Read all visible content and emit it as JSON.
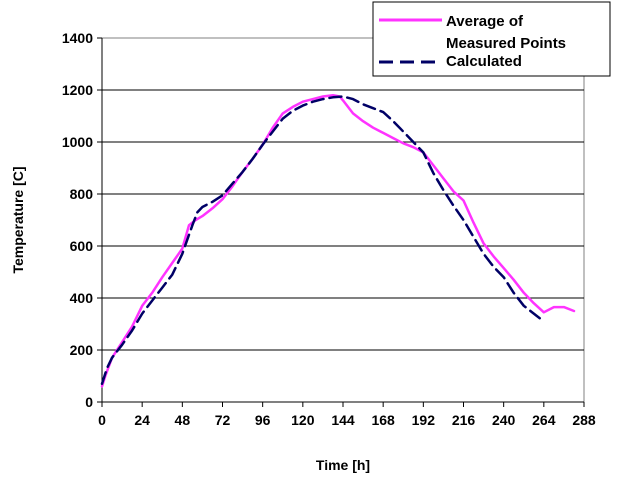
{
  "chart_data": {
    "type": "line",
    "title": "",
    "xlabel": "Time [h]",
    "ylabel": "Temperature [C]",
    "xlim": [
      0,
      288
    ],
    "ylim": [
      0,
      1400
    ],
    "xticks": [
      "0",
      "24",
      "48",
      "72",
      "96",
      "120",
      "144",
      "168",
      "192",
      "216",
      "240",
      "264",
      "288"
    ],
    "yticks": [
      "0",
      "200",
      "400",
      "600",
      "800",
      "1000",
      "1200",
      "1400"
    ],
    "grid": "horizontal",
    "legend_position": "top-right",
    "series": [
      {
        "name": "Average of Measured Points",
        "color": "#ff33ff",
        "style": "solid",
        "x": [
          0,
          2,
          6,
          12,
          18,
          24,
          30,
          36,
          42,
          48,
          52,
          56,
          60,
          66,
          72,
          78,
          84,
          90,
          96,
          102,
          108,
          114,
          120,
          126,
          132,
          138,
          142,
          144,
          150,
          156,
          162,
          168,
          174,
          180,
          186,
          192,
          198,
          204,
          210,
          216,
          222,
          228,
          234,
          240,
          246,
          252,
          258,
          264,
          270,
          276,
          282
        ],
        "y": [
          60,
          100,
          170,
          230,
          290,
          370,
          420,
          480,
          535,
          590,
          680,
          700,
          715,
          745,
          780,
          830,
          885,
          935,
          990,
          1055,
          1110,
          1135,
          1155,
          1165,
          1175,
          1180,
          1175,
          1160,
          1110,
          1080,
          1055,
          1035,
          1015,
          995,
          980,
          960,
          910,
          860,
          810,
          775,
          690,
          610,
          560,
          515,
          470,
          420,
          380,
          345,
          365,
          365,
          350
        ]
      },
      {
        "name": "Calculated",
        "color": "#000066",
        "style": "dashed",
        "x": [
          0,
          3,
          6,
          12,
          18,
          24,
          30,
          36,
          42,
          48,
          54,
          57,
          60,
          66,
          72,
          78,
          84,
          90,
          96,
          102,
          108,
          114,
          120,
          126,
          132,
          138,
          144,
          150,
          156,
          162,
          168,
          174,
          180,
          186,
          192,
          198,
          204,
          210,
          216,
          222,
          228,
          234,
          240,
          246,
          252,
          258,
          264
        ],
        "y": [
          70,
          130,
          170,
          220,
          275,
          340,
          390,
          440,
          490,
          570,
          680,
          730,
          750,
          770,
          795,
          840,
          885,
          935,
          990,
          1040,
          1090,
          1120,
          1140,
          1155,
          1165,
          1172,
          1175,
          1165,
          1145,
          1130,
          1115,
          1080,
          1040,
          1000,
          960,
          880,
          815,
          755,
          700,
          635,
          570,
          520,
          480,
          420,
          370,
          340,
          310
        ]
      }
    ]
  }
}
